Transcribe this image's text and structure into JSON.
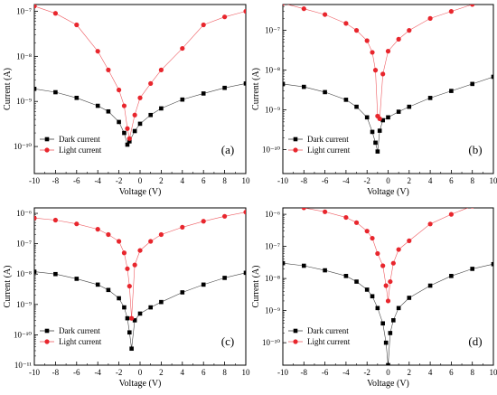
{
  "chart_data": [
    {
      "type": "scatter",
      "panel_label": "(a)",
      "xlabel": "Voltage (V)",
      "ylabel": "Current (A)",
      "xlim": [
        -10,
        10
      ],
      "ylim_log10": [
        -10.6,
        -6.85
      ],
      "y_scale": "log",
      "x_ticks": [
        -10,
        -8,
        -6,
        -4,
        -2,
        0,
        2,
        4,
        6,
        8,
        10
      ],
      "y_ticks": [
        -10,
        -9,
        -8,
        -7
      ],
      "legend_position": "bottom-left",
      "series": [
        {
          "name": "Dark current",
          "color": "#000000",
          "marker": "square",
          "x": [
            -10,
            -8,
            -6,
            -4,
            -3,
            -2,
            -1.5,
            -1.2,
            -1,
            -0.5,
            0,
            1,
            2,
            4,
            6,
            8,
            10
          ],
          "y": [
            1.9e-09,
            1.6e-09,
            1.2e-09,
            8e-10,
            6e-10,
            3.5e-10,
            2e-10,
            1.1e-10,
            1.3e-10,
            2.2e-10,
            3.2e-10,
            5e-10,
            7e-10,
            1.1e-09,
            1.5e-09,
            2e-09,
            2.5e-09
          ]
        },
        {
          "name": "Light current",
          "color": "#e8262d",
          "marker": "circle",
          "x": [
            -10,
            -8,
            -6,
            -4,
            -3,
            -2,
            -1.5,
            -1.2,
            -1,
            -0.5,
            0,
            1,
            2,
            4,
            6,
            8,
            10
          ],
          "y": [
            1.3e-07,
            9e-08,
            5e-08,
            1.3e-08,
            5e-09,
            1.8e-09,
            8e-10,
            2.5e-10,
            1.5e-10,
            5e-10,
            1.2e-09,
            2.5e-09,
            5e-09,
            1.5e-08,
            5e-08,
            7.5e-08,
            1e-07
          ]
        }
      ]
    },
    {
      "type": "scatter",
      "panel_label": "(b)",
      "xlabel": "Voltage (V)",
      "ylabel": "Current (A)",
      "xlim": [
        -10,
        10
      ],
      "ylim_log10": [
        -10.6,
        -6.35
      ],
      "y_scale": "log",
      "x_ticks": [
        -10,
        -8,
        -6,
        -4,
        -2,
        0,
        2,
        4,
        6,
        8,
        10
      ],
      "y_ticks": [
        -10,
        -9,
        -8,
        -7
      ],
      "legend_position": "bottom-left",
      "series": [
        {
          "name": "Dark current",
          "color": "#000000",
          "marker": "square",
          "x": [
            -10,
            -8,
            -6,
            -4,
            -3,
            -2,
            -1.5,
            -1.2,
            -1,
            -0.8,
            -0.5,
            0,
            1,
            2,
            4,
            6,
            8,
            10
          ],
          "y": [
            4.5e-09,
            3.8e-09,
            2.8e-09,
            1.8e-09,
            1.2e-09,
            6.5e-10,
            2.8e-10,
            1.5e-10,
            9e-11,
            3e-10,
            5.5e-10,
            6.5e-10,
            9e-10,
            1.2e-09,
            2e-09,
            3e-09,
            4.5e-09,
            6.8e-09
          ]
        },
        {
          "name": "Light current",
          "color": "#e8262d",
          "marker": "circle",
          "x": [
            -10,
            -8,
            -6,
            -4,
            -3,
            -2,
            -1.5,
            -1.2,
            -1,
            -0.8,
            -0.5,
            0,
            1,
            2,
            4,
            6,
            8,
            10
          ],
          "y": [
            4.8e-07,
            3.5e-07,
            2.5e-07,
            1.5e-07,
            1e-07,
            5.5e-08,
            2.8e-08,
            1e-08,
            7e-10,
            6e-10,
            8e-09,
            3e-08,
            6e-08,
            1e-07,
            2e-07,
            3e-07,
            4.5e-07,
            6.5e-07
          ]
        }
      ]
    },
    {
      "type": "scatter",
      "panel_label": "(c)",
      "xlabel": "Voltage (V)",
      "ylabel": "Current (A)",
      "xlim": [
        -10,
        10
      ],
      "ylim_log10": [
        -11,
        -5.82
      ],
      "y_scale": "log",
      "x_ticks": [
        -10,
        -8,
        -6,
        -4,
        -2,
        0,
        2,
        4,
        6,
        8,
        10
      ],
      "y_ticks": [
        -11,
        -10,
        -9,
        -8,
        -7,
        -6
      ],
      "legend_position": "bottom-left",
      "series": [
        {
          "name": "Dark current",
          "color": "#000000",
          "marker": "square",
          "x": [
            -10,
            -8,
            -6,
            -4,
            -3,
            -2,
            -1.5,
            -1.2,
            -1,
            -0.8,
            -0.5,
            0,
            1,
            2,
            4,
            6,
            8,
            10
          ],
          "y": [
            1.2e-08,
            1e-08,
            7e-09,
            4.5e-09,
            3e-09,
            1.6e-09,
            8e-10,
            3.5e-10,
            1.2e-10,
            3.5e-11,
            3e-10,
            5e-10,
            8e-10,
            1.2e-09,
            2.5e-09,
            4.5e-09,
            7.5e-09,
            1.1e-08
          ]
        },
        {
          "name": "Light current",
          "color": "#e8262d",
          "marker": "circle",
          "x": [
            -10,
            -8,
            -6,
            -4,
            -3,
            -2,
            -1.5,
            -1.2,
            -1,
            -0.8,
            -0.5,
            0,
            1,
            2,
            4,
            6,
            8,
            10
          ],
          "y": [
            7e-07,
            6e-07,
            4.5e-07,
            3e-07,
            2e-07,
            1.2e-07,
            5e-08,
            1.5e-08,
            4e-09,
            3.5e-10,
            2e-08,
            6e-08,
            1.2e-07,
            2e-07,
            3.5e-07,
            5.5e-07,
            8e-07,
            1.1e-06
          ]
        }
      ]
    },
    {
      "type": "scatter",
      "panel_label": "(d)",
      "xlabel": "Voltage (V)",
      "ylabel": "Current (A)",
      "xlim": [
        -10,
        10
      ],
      "ylim_log10": [
        -10.7,
        -5.8
      ],
      "y_scale": "log",
      "x_ticks": [
        -10,
        -8,
        -6,
        -4,
        -2,
        0,
        2,
        4,
        6,
        8,
        10
      ],
      "y_ticks": [
        -10,
        -9,
        -8,
        -7,
        -6
      ],
      "legend_position": "bottom-left",
      "series": [
        {
          "name": "Dark current",
          "color": "#000000",
          "marker": "square",
          "x": [
            -10,
            -8,
            -6,
            -4,
            -3,
            -2,
            -1.5,
            -1,
            -0.5,
            -0.2,
            0,
            0.2,
            0.5,
            1,
            2,
            4,
            6,
            8,
            10
          ],
          "y": [
            3e-08,
            2.5e-08,
            1.8e-08,
            1.2e-08,
            8e-09,
            4.5e-09,
            2.8e-09,
            1.2e-09,
            4e-10,
            1e-10,
            2e-11,
            2e-10,
            5e-10,
            1.2e-09,
            2.5e-09,
            6e-09,
            1.2e-08,
            2e-08,
            2.8e-08
          ]
        },
        {
          "name": "Light current",
          "color": "#e8262d",
          "marker": "circle",
          "x": [
            -10,
            -8,
            -6,
            -4,
            -3,
            -2,
            -1.5,
            -1,
            -0.5,
            -0.2,
            0,
            0.2,
            0.5,
            1,
            2,
            4,
            6,
            8,
            10
          ],
          "y": [
            2e-06,
            1.6e-06,
            1.2e-06,
            8e-07,
            5.5e-07,
            3e-07,
            1.8e-07,
            6e-08,
            2.5e-08,
            6e-09,
            2e-09,
            8e-09,
            3e-08,
            8e-08,
            1.5e-07,
            5e-07,
            1e-06,
            1.8e-06,
            2.8e-06
          ]
        }
      ]
    }
  ]
}
